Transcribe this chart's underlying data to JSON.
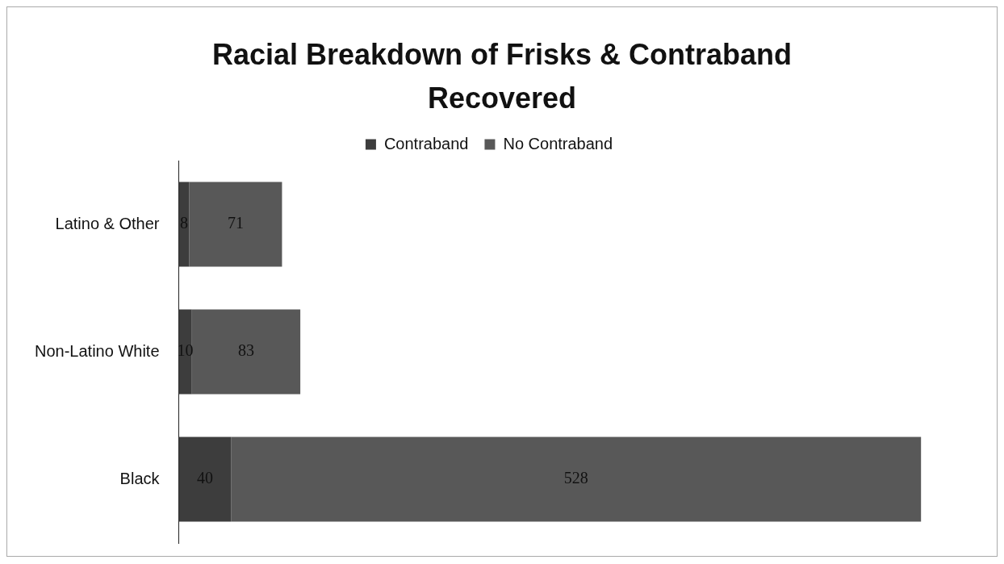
{
  "chart_data": {
    "type": "bar",
    "orientation": "horizontal",
    "stacked": true,
    "title": "Racial Breakdown of Frisks & Contraband Recovered",
    "categories": [
      "Latino & Other",
      "Non-Latino White",
      "Black"
    ],
    "series": [
      {
        "name": "Contraband",
        "color": "#3d3d3d",
        "values": [
          8,
          10,
          40
        ]
      },
      {
        "name": "No Contraband",
        "color": "#585858",
        "values": [
          71,
          83,
          528
        ]
      }
    ],
    "data_labels": true,
    "legend": "top",
    "grid": false,
    "tick_labels": "y"
  }
}
